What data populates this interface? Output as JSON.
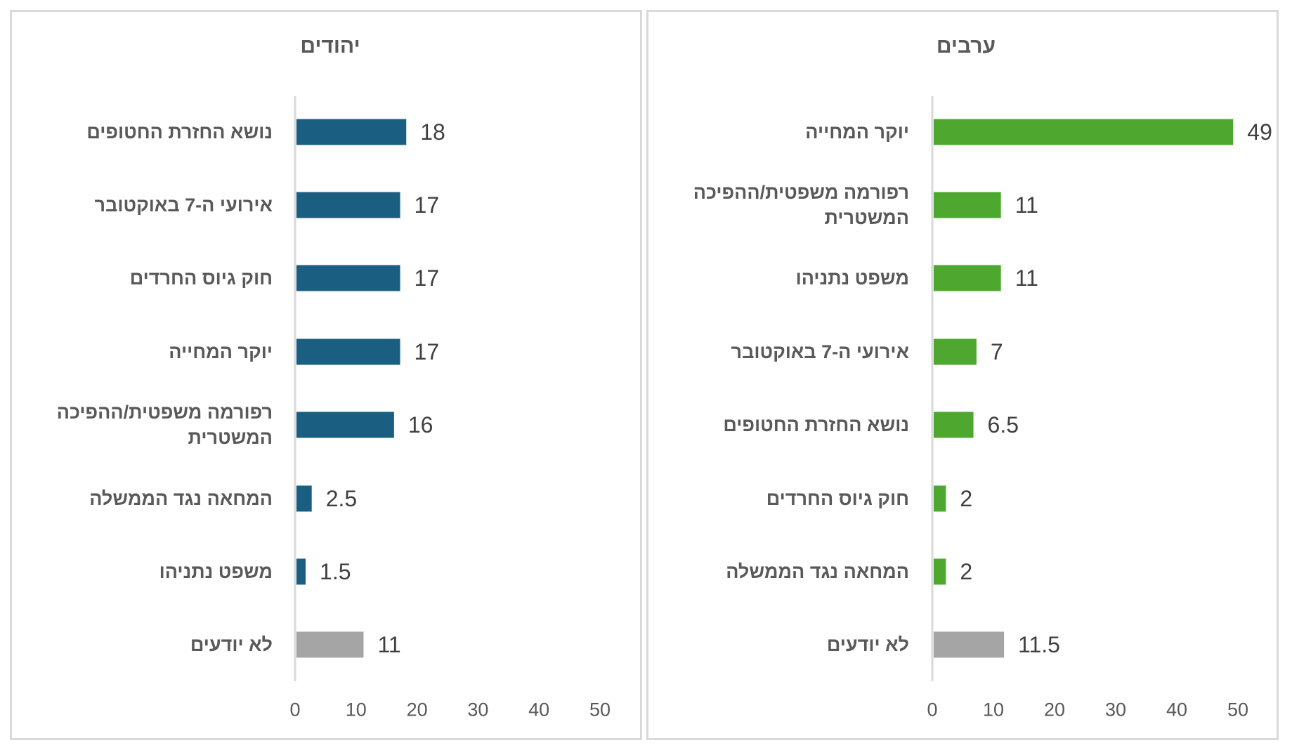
{
  "chart_data": [
    {
      "type": "bar",
      "orientation": "horizontal",
      "title": "יהודים",
      "categories": [
        "נושא החזרת החטופים",
        "אירועי ה-7 באוקטובר",
        "חוק גיוס החרדים",
        "יוקר המחייה",
        "רפורמה משפטית/ההפיכה המשטרית",
        "המחאה נגד הממשלה",
        "משפט נתניהו",
        "לא יודעים"
      ],
      "values": [
        18,
        17,
        17,
        17,
        16,
        2.5,
        1.5,
        11
      ],
      "value_labels": [
        "18",
        "17",
        "17",
        "17",
        "16",
        "2.5",
        "1.5",
        "11"
      ],
      "xlim": [
        0,
        50
      ],
      "xticks": [
        "0",
        "10",
        "20",
        "30",
        "40",
        "50"
      ],
      "bar_colors": [
        "#1a5f82",
        "#1a5f82",
        "#1a5f82",
        "#1a5f82",
        "#1a5f82",
        "#1a5f82",
        "#1a5f82",
        "#a5a5a5"
      ],
      "grid": false
    },
    {
      "type": "bar",
      "orientation": "horizontal",
      "title": "ערבים",
      "categories": [
        "יוקר המחייה",
        "רפורמה משפטית/ההפיכה המשטרית",
        "משפט נתניהו",
        "אירועי ה-7 באוקטובר",
        "נושא החזרת החטופים",
        "חוק גיוס החרדים",
        "המחאה נגד הממשלה",
        "לא יודעים"
      ],
      "values": [
        49,
        11,
        11,
        7,
        6.5,
        2,
        2,
        11.5
      ],
      "value_labels": [
        "49",
        "11",
        "11",
        "7",
        "6.5",
        "2",
        "2",
        "11.5"
      ],
      "xlim": [
        0,
        50
      ],
      "xticks": [
        "0",
        "10",
        "20",
        "30",
        "40",
        "50"
      ],
      "bar_colors": [
        "#4ea72e",
        "#4ea72e",
        "#4ea72e",
        "#4ea72e",
        "#4ea72e",
        "#4ea72e",
        "#4ea72e",
        "#a5a5a5"
      ],
      "grid": false
    }
  ]
}
